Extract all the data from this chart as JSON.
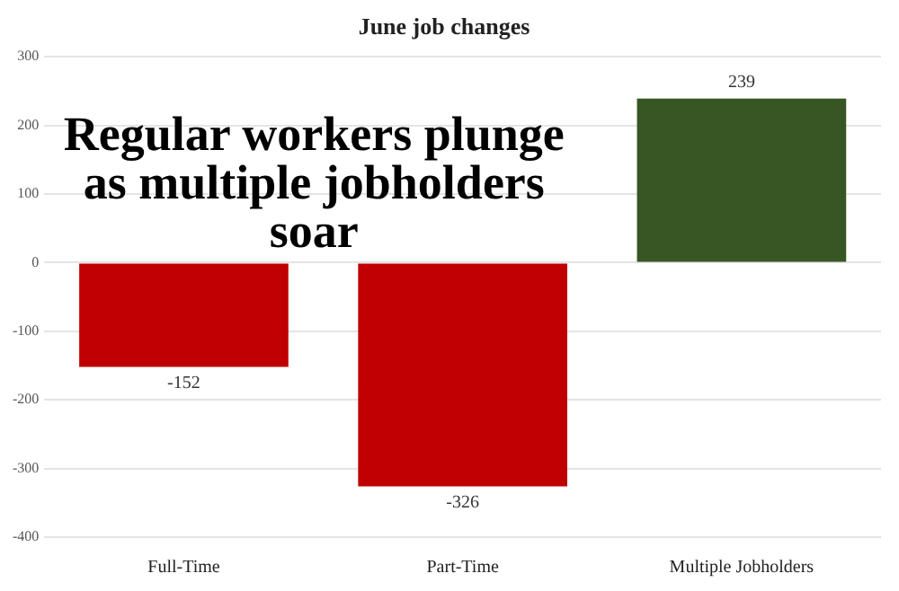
{
  "chart_data": {
    "type": "bar",
    "title": "June job changes",
    "categories": [
      "Full-Time",
      "Part-Time",
      "Multiple Jobholders"
    ],
    "values": [
      -152,
      -326,
      239
    ],
    "colors": [
      "#c00000",
      "#c00000",
      "#375623"
    ],
    "ylim": [
      -400,
      300
    ],
    "yticks": [
      -400,
      -300,
      -200,
      -100,
      0,
      100,
      200,
      300
    ],
    "grid": "y",
    "data_labels": true,
    "legend": false,
    "annotations": [
      "Regular workers plunge\nas multiple jobholders\nsoar"
    ]
  }
}
